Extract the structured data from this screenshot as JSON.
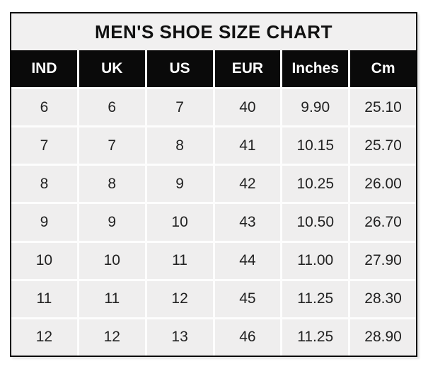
{
  "title": "MEN'S SHOE SIZE CHART",
  "colors": {
    "title_bg": "#f1f0f0",
    "header_bg": "#0a0a0a",
    "header_text": "#ffffff",
    "cell_bg": "#efeeee",
    "cell_text": "#222222",
    "gap": "#fdfdfd",
    "border": "#000000"
  },
  "chart_data": {
    "type": "table",
    "title": "MEN'S SHOE SIZE CHART",
    "columns": [
      "IND",
      "UK",
      "US",
      "EUR",
      "Inches",
      "Cm"
    ],
    "rows": [
      [
        "6",
        "6",
        "7",
        "40",
        "9.90",
        "25.10"
      ],
      [
        "7",
        "7",
        "8",
        "41",
        "10.15",
        "25.70"
      ],
      [
        "8",
        "8",
        "9",
        "42",
        "10.25",
        "26.00"
      ],
      [
        "9",
        "9",
        "10",
        "43",
        "10.50",
        "26.70"
      ],
      [
        "10",
        "10",
        "11",
        "44",
        "11.00",
        "27.90"
      ],
      [
        "11",
        "11",
        "12",
        "45",
        "11.25",
        "28.30"
      ],
      [
        "12",
        "12",
        "13",
        "46",
        "11.25",
        "28.90"
      ]
    ]
  }
}
